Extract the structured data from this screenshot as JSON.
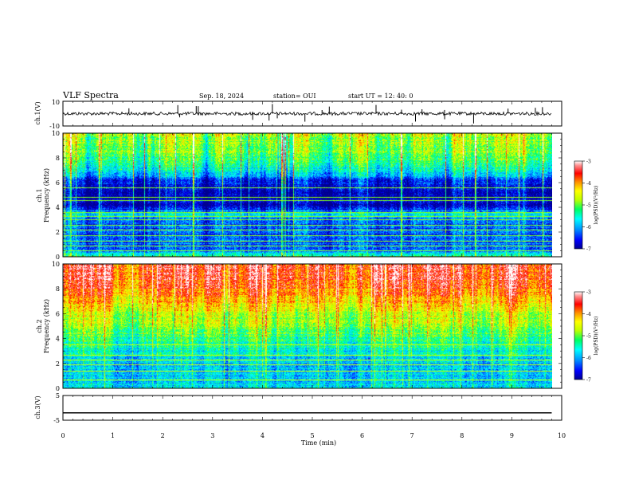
{
  "header": {
    "title": "VLF Spectra",
    "date": "Sep. 18, 2024",
    "station": "station= OUI",
    "start": "start  UT  =   12: 40: 0"
  },
  "colorbar": {
    "label": "log(PSD)(V²/Hz)",
    "ticks": [
      -3,
      -4,
      -5,
      -6,
      -7
    ],
    "range": [
      -7,
      -3
    ],
    "colors": [
      "#000090",
      "#0000ff",
      "#0090ff",
      "#00ffff",
      "#00ff60",
      "#c0ff00",
      "#ffff00",
      "#ff9000",
      "#ff0000",
      "#ff9090",
      "#ffffff"
    ]
  },
  "chart_data": [
    {
      "type": "line",
      "ylabel": "ch.1(V)",
      "ylim": [
        -10,
        10
      ],
      "yticks": [
        "10",
        "-10"
      ],
      "series": [
        {
          "description": "noisy waveform near 0 V with sparse spikes",
          "baseline": 0
        }
      ]
    },
    {
      "type": "heatmap",
      "ylabel": "ch.1\nFrequency (kHz)",
      "ylim": [
        0,
        10
      ],
      "yticks": [
        "0",
        "2",
        "4",
        "6",
        "8",
        "10"
      ],
      "profile_freq_khz": [
        0,
        0.5,
        1,
        2,
        3,
        3.5,
        4,
        5,
        6,
        7,
        8,
        9,
        10
      ],
      "profile_log_psd": [
        -5.0,
        -6.1,
        -6.2,
        -6.3,
        -6.2,
        -5.6,
        -6.7,
        -6.9,
        -6.6,
        -5.6,
        -5.0,
        -4.8,
        -4.6
      ],
      "lines_khz": [
        0.5,
        0.9,
        1.3,
        1.75,
        2.2,
        2.6,
        3.05,
        3.3,
        3.6,
        4.6,
        4.85,
        5.6
      ]
    },
    {
      "type": "heatmap",
      "ylabel": "ch.2\nFrequency (kHz)",
      "ylim": [
        0,
        10
      ],
      "yticks": [
        "0",
        "2",
        "4",
        "6",
        "8",
        "10"
      ],
      "profile_freq_khz": [
        0,
        1,
        2,
        3,
        4,
        5,
        6,
        7,
        8,
        9,
        10
      ],
      "profile_log_psd": [
        -5.8,
        -5.9,
        -5.8,
        -5.6,
        -5.2,
        -4.9,
        -4.6,
        -4.2,
        -3.8,
        -3.6,
        -3.5
      ],
      "lines_khz": [
        0.7,
        1.4,
        1.9,
        2.3,
        2.7,
        3.5
      ]
    },
    {
      "type": "line",
      "ylabel": "ch.3(V)",
      "ylim": [
        -5,
        5
      ],
      "yticks": [
        "5",
        "-5"
      ],
      "series": [
        {
          "description": "flat line",
          "values": [
            -2,
            -2
          ]
        }
      ]
    }
  ],
  "xaxis": {
    "label": "Time (min)",
    "ticks": [
      "0",
      "1",
      "2",
      "3",
      "4",
      "5",
      "6",
      "7",
      "8",
      "9",
      "10"
    ],
    "xlim": [
      0,
      10
    ],
    "data_end": 9.8
  }
}
